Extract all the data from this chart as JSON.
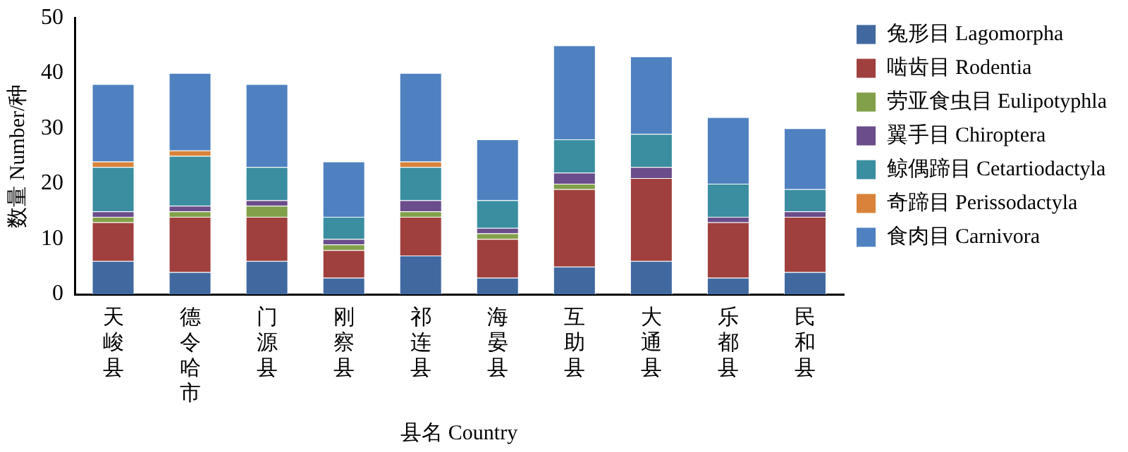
{
  "chart_data": {
    "type": "bar",
    "stacked": true,
    "xlabel": "县名 Country",
    "ylabel": "数量 Number/种",
    "categories": [
      "天峻县",
      "德令哈市",
      "门源县",
      "刚察县",
      "祁连县",
      "海晏县",
      "互助县",
      "大通县",
      "乐都县",
      "民和县"
    ],
    "series": [
      {
        "name": "兔形目 Lagomorpha",
        "color": "#4169a0",
        "values": [
          6,
          4,
          6,
          3,
          7,
          3,
          5,
          6,
          3,
          4
        ]
      },
      {
        "name": "啮齿目 Rodentia",
        "color": "#a0403e",
        "values": [
          7,
          10,
          8,
          5,
          7,
          7,
          14,
          15,
          10,
          10
        ]
      },
      {
        "name": "劳亚食虫目 Eulipotyphla",
        "color": "#82a04a",
        "values": [
          1,
          1,
          2,
          1,
          1,
          1,
          1,
          0,
          0,
          0
        ]
      },
      {
        "name": "翼手目 Chiroptera",
        "color": "#6a4d8a",
        "values": [
          1,
          1,
          1,
          1,
          2,
          1,
          2,
          2,
          1,
          1
        ]
      },
      {
        "name": "鲸偶蹄目 Cetartiodactyla",
        "color": "#3a8ea0",
        "values": [
          8,
          9,
          6,
          4,
          6,
          5,
          6,
          6,
          6,
          4
        ]
      },
      {
        "name": "奇蹄目 Perissodactyla",
        "color": "#d9833a",
        "values": [
          1,
          1,
          0,
          0,
          1,
          0,
          0,
          0,
          0,
          0
        ]
      },
      {
        "name": "食肉目 Carnivora",
        "color": "#4f81c0",
        "values": [
          14,
          14,
          15,
          10,
          16,
          11,
          17,
          14,
          12,
          11
        ]
      }
    ],
    "ylim": [
      0,
      50
    ],
    "yticks": [
      0,
      10,
      20,
      30,
      40,
      50
    ],
    "grid": false,
    "legend": "right"
  }
}
